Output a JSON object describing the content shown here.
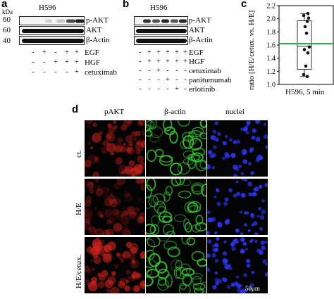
{
  "panel_a": {
    "letter": "a",
    "kda_label": "kDa",
    "cell_line": "H596",
    "mw": [
      "60",
      "60",
      "40"
    ],
    "rows": [
      "p-AKT",
      "AKT",
      "β-Actin"
    ],
    "treatments": [
      {
        "label": "EGF",
        "signs": [
          "-",
          "+",
          "-",
          "+",
          "+"
        ]
      },
      {
        "label": "HGF",
        "signs": [
          "-",
          "-",
          "+",
          "+",
          "+"
        ]
      },
      {
        "label": "cetuximab",
        "signs": [
          "-",
          "-",
          "-",
          "-",
          "+"
        ]
      }
    ]
  },
  "panel_b": {
    "letter": "b",
    "cell_line": "H596",
    "rows": [
      "p-AKT",
      "AKT",
      "β-Actin"
    ],
    "treatments": [
      {
        "label": "EGF",
        "signs": [
          "-",
          "+",
          "+",
          "+",
          "+",
          "+"
        ]
      },
      {
        "label": "HGF",
        "signs": [
          "-",
          "+",
          "+",
          "+",
          "+",
          "+"
        ]
      },
      {
        "label": "cetuximab",
        "signs": [
          "-",
          "-",
          "+",
          "-",
          "-",
          "-"
        ]
      },
      {
        "label": "panitumumab",
        "signs": [
          "-",
          "-",
          "-",
          "+",
          "-",
          "-"
        ]
      },
      {
        "label": "erlotinib",
        "signs": [
          "-",
          "-",
          "-",
          "-",
          "+",
          "-"
        ]
      }
    ]
  },
  "panel_c": {
    "letter": "c",
    "chart_data": {
      "type": "box",
      "ylabel": "ratio [H/E/cetux. vs. H/E]",
      "xlabel": "H596, 5 min",
      "ylim": [
        1.0,
        2.2
      ],
      "yticks": [
        "1.0",
        "1.2",
        "1.4",
        "1.6",
        "1.8",
        "2.0",
        "2.2"
      ],
      "points": [
        2.08,
        2.05,
        2.01,
        1.96,
        1.88,
        1.78,
        1.57,
        1.53,
        1.48,
        1.28,
        1.15,
        1.12
      ],
      "box": {
        "q1": 1.23,
        "median": 1.58,
        "q3": 1.97,
        "min": 1.12,
        "max": 2.08
      },
      "reference_line": 1.62,
      "reference_color": "#2e9e46"
    }
  },
  "panel_d": {
    "letter": "d",
    "columns": [
      "pAKT",
      "β-actin",
      "nuclei"
    ],
    "rows": [
      "ct.",
      "H/E",
      "H/E/cetux."
    ],
    "scale_bar": "50μm",
    "channel_colors": [
      "#d0231c",
      "#34c22a",
      "#2a33e8"
    ]
  }
}
